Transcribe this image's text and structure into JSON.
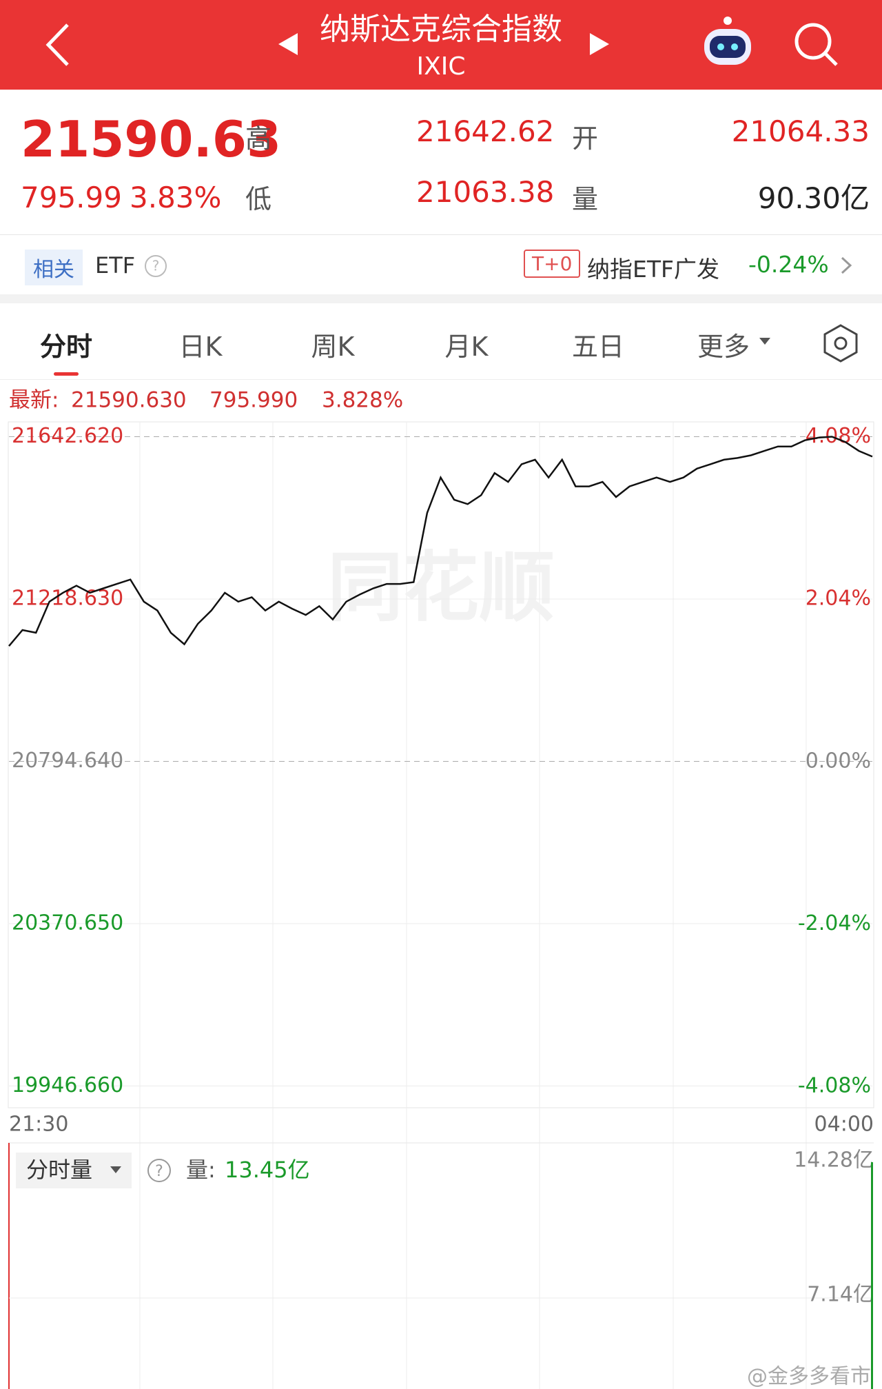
{
  "header": {
    "title": "纳斯达克综合指数",
    "code": "IXIC"
  },
  "quote": {
    "price": "21590.63",
    "change": "795.99",
    "pct": "3.83%",
    "high_label": "高",
    "high": "21642.62",
    "low_label": "低",
    "low": "21063.38",
    "open_label": "开",
    "open": "21064.33",
    "vol_label": "量",
    "vol": "90.30亿"
  },
  "etf": {
    "badge": "相关",
    "label": "ETF",
    "t0": "T+0",
    "name": "纳指ETF广发",
    "change": "-0.24%"
  },
  "tabs": [
    "分时",
    "日K",
    "周K",
    "月K",
    "五日",
    "更多"
  ],
  "latest": {
    "label": "最新:",
    "price": "21590.630",
    "change": "795.990",
    "pct": "3.828%"
  },
  "watermark": "同花顺",
  "chart_data": {
    "type": "line",
    "color": "#111111",
    "values": [
      21095.8,
      21137.5,
      21130.6,
      21211.7,
      21234.9,
      21253.4,
      21234.9,
      21246.4,
      21258.0,
      21269.6,
      21211.7,
      21188.5,
      21130.6,
      21100.5,
      21153.7,
      21188.5,
      21234.9,
      21211.7,
      21223.2,
      21188.5,
      21211.7,
      21193.1,
      21176.9,
      21200.1,
      21165.3,
      21211.7,
      21230.2,
      21246.4,
      21258.0,
      21258.0,
      21262.6,
      21443.4,
      21536.0,
      21478.1,
      21466.5,
      21489.7,
      21547.6,
      21524.4,
      21570.8,
      21582.4,
      21536.0,
      21582.4,
      21512.8,
      21512.8,
      21524.4,
      21485.1,
      21512.8,
      21524.4,
      21536.0,
      21524.4,
      21536.0,
      21559.2,
      21570.8,
      21582.4,
      21587.0,
      21593.9,
      21605.5,
      21617.1,
      21617.1,
      21633.3,
      21640.0,
      21642.6,
      21628.7,
      21605.5,
      21590.63
    ],
    "ylim": [
      19891.6,
      21677.7
    ],
    "yticks": [
      {
        "value": 21642.62,
        "label": "21642.620"
      },
      {
        "value": 21218.63,
        "label": "21218.630"
      },
      {
        "value": 20794.64,
        "label": "20794.640"
      },
      {
        "value": 20370.65,
        "label": "20370.650"
      },
      {
        "value": 19946.66,
        "label": "19946.660"
      }
    ],
    "y2lim": [
      -4.34,
      4.25
    ],
    "y2ticks": [
      {
        "value": 4.08,
        "label": "4.08%"
      },
      {
        "value": 2.04,
        "label": "2.04%"
      },
      {
        "value": 0,
        "label": "0.00%"
      },
      {
        "value": -2.04,
        "label": "-2.04%"
      },
      {
        "value": -4.08,
        "label": "-4.08%"
      }
    ],
    "x_labels": [
      "21:30",
      "04:00"
    ]
  },
  "volume": {
    "label": "分时量",
    "qty_label": "量:",
    "value": 13.45,
    "value_label": "13.45亿",
    "color": "#1a9a2a",
    "ylim": [
      0,
      14.28
    ],
    "yticks": [
      {
        "value": 14.28,
        "label": "14.28亿"
      },
      {
        "value": 7.14,
        "label": "7.14亿"
      }
    ]
  },
  "credit": "@金多多看市"
}
